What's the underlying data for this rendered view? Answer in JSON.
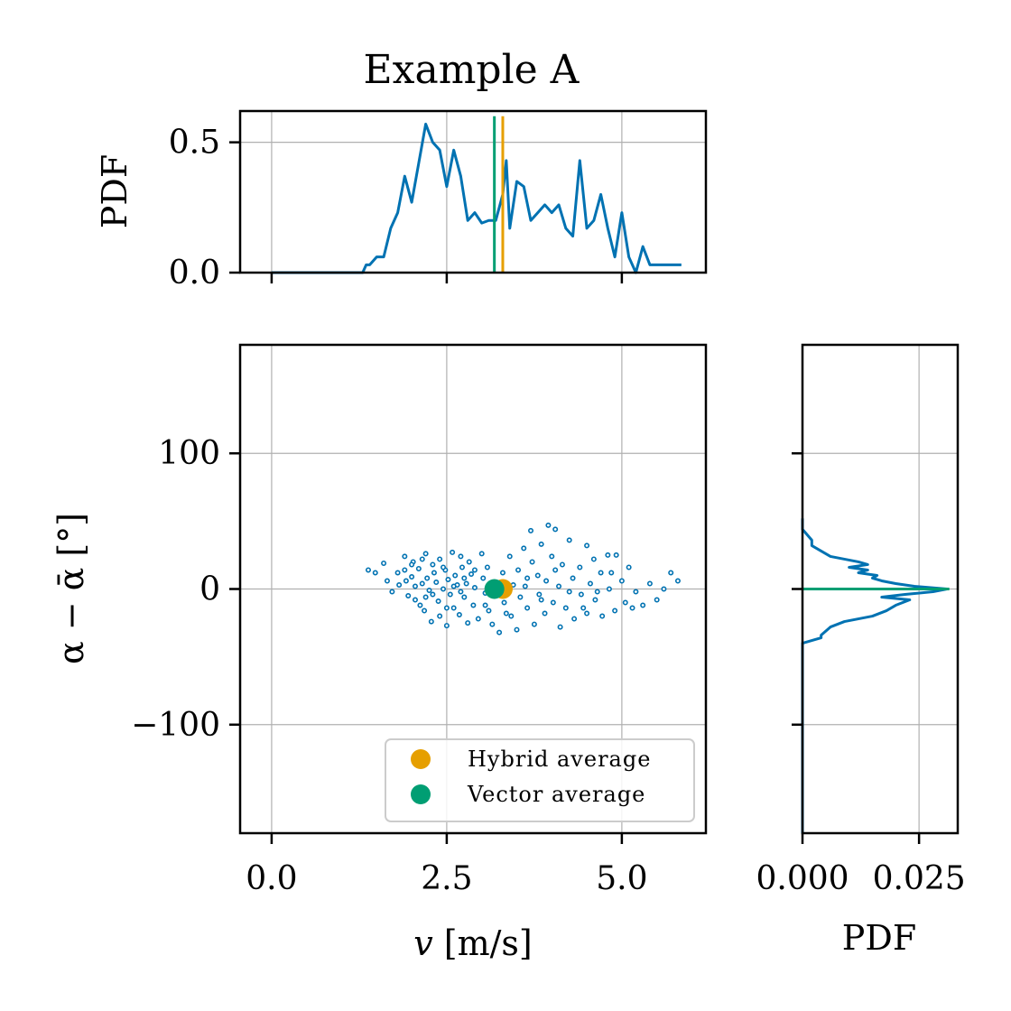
{
  "chart_data": {
    "title": "Example A",
    "colors": {
      "pdf_line": "#0072b2",
      "hybrid": "#e69f00",
      "vector": "#009e73",
      "grid": "#b0b0b0"
    },
    "top_panel": {
      "type": "line",
      "ylabel": "PDF",
      "xlim": [
        -0.45,
        6.2
      ],
      "ylim": [
        0.0,
        0.62
      ],
      "xticks": [
        "",
        "",
        ""
      ],
      "xtick_values": [
        0,
        2.5,
        5
      ],
      "yticks": [
        "0.0",
        "0.5"
      ],
      "ytick_values": [
        0.0,
        0.5
      ],
      "series": [
        {
          "x": [
            0.0,
            1.3,
            1.35,
            1.4,
            1.5,
            1.6,
            1.7,
            1.8,
            1.9,
            2.0,
            2.1,
            2.2,
            2.3,
            2.4,
            2.5,
            2.6,
            2.7,
            2.8,
            2.9,
            3.0,
            3.1,
            3.2,
            3.3,
            3.35,
            3.4,
            3.5,
            3.6,
            3.7,
            3.8,
            3.9,
            4.0,
            4.1,
            4.2,
            4.3,
            4.4,
            4.5,
            4.6,
            4.7,
            4.8,
            4.9,
            5.0,
            5.1,
            5.2,
            5.3,
            5.4,
            5.5,
            5.6,
            5.7,
            5.85
          ],
          "y": [
            0.0,
            0.0,
            0.03,
            0.03,
            0.06,
            0.06,
            0.17,
            0.23,
            0.37,
            0.27,
            0.42,
            0.57,
            0.5,
            0.47,
            0.33,
            0.47,
            0.37,
            0.2,
            0.23,
            0.19,
            0.2,
            0.2,
            0.3,
            0.43,
            0.17,
            0.35,
            0.33,
            0.2,
            0.23,
            0.26,
            0.23,
            0.26,
            0.17,
            0.14,
            0.43,
            0.17,
            0.2,
            0.3,
            0.17,
            0.06,
            0.23,
            0.06,
            0.0,
            0.1,
            0.03,
            0.03,
            0.03,
            0.03,
            0.03
          ]
        }
      ],
      "vlines": [
        {
          "name": "Vector average",
          "x": 3.18
        },
        {
          "name": "Hybrid average",
          "x": 3.3
        }
      ]
    },
    "main_panel": {
      "type": "scatter",
      "xlabel": "v [m/s]",
      "ylabel": "α − ᾱ [°]",
      "xlim": [
        -0.45,
        6.2
      ],
      "ylim": [
        -180,
        180
      ],
      "xticks": [
        "0.0",
        "2.5",
        "5.0"
      ],
      "xtick_values": [
        0,
        2.5,
        5
      ],
      "yticks": [
        "−100",
        "0",
        "100"
      ],
      "ytick_values": [
        -100,
        0,
        100
      ],
      "grid": true,
      "legend": {
        "position": "lower-right",
        "entries": [
          {
            "label": "Hybrid average",
            "color_key": "hybrid"
          },
          {
            "label": "Vector average",
            "color_key": "vector"
          }
        ]
      },
      "averages": [
        {
          "name": "Hybrid average",
          "x": 3.3,
          "y": 0
        },
        {
          "name": "Vector average",
          "x": 3.18,
          "y": 0
        }
      ],
      "points": [
        [
          1.38,
          14
        ],
        [
          1.48,
          12
        ],
        [
          1.6,
          19
        ],
        [
          1.65,
          6
        ],
        [
          1.72,
          -2
        ],
        [
          1.8,
          12
        ],
        [
          1.82,
          3
        ],
        [
          1.9,
          24
        ],
        [
          1.9,
          14
        ],
        [
          1.92,
          6
        ],
        [
          1.95,
          -5
        ],
        [
          2.0,
          9
        ],
        [
          2.02,
          20
        ],
        [
          2.05,
          2
        ],
        [
          2.05,
          -8
        ],
        [
          2.1,
          15
        ],
        [
          2.12,
          -12
        ],
        [
          2.15,
          4
        ],
        [
          2.18,
          -16
        ],
        [
          2.2,
          26
        ],
        [
          2.22,
          8
        ],
        [
          2.25,
          -1
        ],
        [
          2.28,
          -24
        ],
        [
          2.3,
          18
        ],
        [
          2.32,
          12
        ],
        [
          2.35,
          5
        ],
        [
          2.38,
          -9
        ],
        [
          2.4,
          22
        ],
        [
          2.4,
          -20
        ],
        [
          2.45,
          0
        ],
        [
          2.48,
          14
        ],
        [
          2.5,
          -27
        ],
        [
          2.52,
          7
        ],
        [
          2.55,
          -4
        ],
        [
          2.58,
          27
        ],
        [
          2.6,
          -14
        ],
        [
          2.62,
          10
        ],
        [
          2.65,
          3
        ],
        [
          2.68,
          -19
        ],
        [
          2.7,
          24
        ],
        [
          2.72,
          16
        ],
        [
          2.75,
          -6
        ],
        [
          2.78,
          4
        ],
        [
          2.8,
          -25
        ],
        [
          2.82,
          20
        ],
        [
          2.85,
          11
        ],
        [
          2.88,
          -12
        ],
        [
          2.9,
          1
        ],
        [
          2.95,
          -22
        ],
        [
          3.0,
          26
        ],
        [
          3.02,
          8
        ],
        [
          3.05,
          -3
        ],
        [
          3.08,
          16
        ],
        [
          3.1,
          -16
        ],
        [
          3.15,
          -26
        ],
        [
          3.2,
          5
        ],
        [
          3.25,
          -32
        ],
        [
          3.3,
          12
        ],
        [
          3.32,
          -10
        ],
        [
          3.4,
          24
        ],
        [
          3.42,
          -20
        ],
        [
          3.45,
          3
        ],
        [
          3.5,
          -30
        ],
        [
          3.52,
          14
        ],
        [
          3.55,
          -6
        ],
        [
          3.6,
          30
        ],
        [
          3.62,
          2
        ],
        [
          3.65,
          -14
        ],
        [
          3.7,
          43
        ],
        [
          3.72,
          20
        ],
        [
          3.75,
          -26
        ],
        [
          3.8,
          10
        ],
        [
          3.82,
          -4
        ],
        [
          3.85,
          33
        ],
        [
          3.9,
          -18
        ],
        [
          3.92,
          6
        ],
        [
          3.95,
          47
        ],
        [
          4.0,
          24
        ],
        [
          4.02,
          -10
        ],
        [
          4.05,
          44
        ],
        [
          4.1,
          2
        ],
        [
          4.12,
          -28
        ],
        [
          4.15,
          18
        ],
        [
          4.2,
          -14
        ],
        [
          4.25,
          36
        ],
        [
          4.3,
          8
        ],
        [
          4.32,
          -22
        ],
        [
          4.4,
          16
        ],
        [
          4.42,
          -4
        ],
        [
          4.5,
          32
        ],
        [
          4.5,
          -18
        ],
        [
          4.55,
          4
        ],
        [
          4.6,
          22
        ],
        [
          4.62,
          -8
        ],
        [
          4.7,
          12
        ],
        [
          4.72,
          -20
        ],
        [
          4.8,
          25
        ],
        [
          4.82,
          0
        ],
        [
          4.9,
          -16
        ],
        [
          4.92,
          25
        ],
        [
          5.0,
          6
        ],
        [
          5.05,
          -10
        ],
        [
          5.1,
          16
        ],
        [
          5.2,
          -2
        ],
        [
          5.3,
          -12
        ],
        [
          5.4,
          4
        ],
        [
          5.5,
          -8
        ],
        [
          5.6,
          0
        ],
        [
          5.7,
          12
        ],
        [
          5.8,
          6
        ],
        [
          2.0,
          18
        ],
        [
          2.15,
          22
        ],
        [
          2.3,
          -4
        ],
        [
          2.45,
          16
        ],
        [
          2.6,
          2
        ],
        [
          2.75,
          8
        ],
        [
          2.9,
          14
        ],
        [
          3.05,
          -12
        ],
        [
          3.35,
          -18
        ],
        [
          3.65,
          8
        ],
        [
          3.85,
          -8
        ],
        [
          4.05,
          14
        ],
        [
          4.25,
          -2
        ],
        [
          4.45,
          -14
        ],
        [
          4.65,
          -2
        ],
        [
          4.85,
          12
        ],
        [
          5.15,
          -14
        ],
        [
          2.2,
          -6
        ],
        [
          2.5,
          -14
        ],
        [
          2.7,
          -2
        ]
      ]
    },
    "right_panel": {
      "type": "line",
      "xlabel": "PDF",
      "xlim": [
        0.0,
        0.0333
      ],
      "ylim": [
        -180,
        180
      ],
      "xticks": [
        "0.000",
        "0.025"
      ],
      "xtick_values": [
        0.0,
        0.025
      ],
      "yticks": [
        "",
        "",
        ""
      ],
      "ytick_values": [
        -100,
        0,
        100
      ],
      "series": [
        {
          "y": [
            -180,
            -40,
            -36,
            -34,
            -28,
            -24,
            -20,
            -16,
            -12,
            -8,
            -6,
            -4,
            -2,
            0,
            2,
            4,
            6,
            8,
            10,
            12,
            14,
            16,
            18,
            20,
            24,
            28,
            32,
            36,
            40,
            44,
            48,
            52
          ],
          "x": [
            0.0,
            0.0,
            0.004,
            0.004,
            0.006,
            0.009,
            0.015,
            0.018,
            0.02,
            0.023,
            0.017,
            0.022,
            0.028,
            0.031,
            0.024,
            0.02,
            0.017,
            0.015,
            0.016,
            0.012,
            0.014,
            0.01,
            0.014,
            0.012,
            0.006,
            0.004,
            0.002,
            0.002,
            0.001,
            0.0,
            0.0,
            0.0
          ]
        }
      ],
      "hlines": [
        {
          "name": "Vector average",
          "y": 0,
          "x_end": 0.0315
        }
      ]
    }
  }
}
